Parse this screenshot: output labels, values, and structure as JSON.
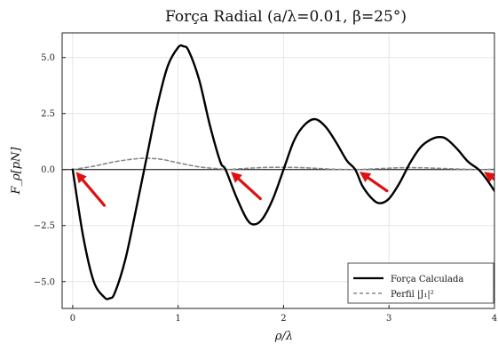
{
  "chart_data": {
    "type": "line",
    "title": "Força Radial (a/λ=0.01, β=25°)",
    "xlabel": "ρ/λ",
    "ylabel": "F_ρ[pN]",
    "xlim": [
      -0.1,
      4.0
    ],
    "ylim": [
      -6.2,
      6.1
    ],
    "x_ticks": [
      0,
      1,
      2,
      3,
      4
    ],
    "y_ticks": [
      -5.0,
      -2.5,
      0.0,
      2.5,
      5.0
    ],
    "x_tick_labels": [
      "0",
      "1",
      "2",
      "3",
      "4"
    ],
    "y_tick_labels": [
      "−5.0",
      "−2.5",
      "0.0",
      "2.5",
      "5.0"
    ],
    "grid": true,
    "legend_position": "bottom-right",
    "series": [
      {
        "name": "Força Calculada",
        "color": "#000000",
        "style": "solid",
        "points": [
          [
            0.0,
            0.0
          ],
          [
            0.1,
            -3.0
          ],
          [
            0.2,
            -5.0
          ],
          [
            0.3,
            -5.7
          ],
          [
            0.35,
            -5.75
          ],
          [
            0.4,
            -5.5
          ],
          [
            0.5,
            -4.0
          ],
          [
            0.6,
            -1.8
          ],
          [
            0.7,
            0.5
          ],
          [
            0.8,
            2.8
          ],
          [
            0.9,
            4.6
          ],
          [
            1.0,
            5.45
          ],
          [
            1.05,
            5.5
          ],
          [
            1.1,
            5.3
          ],
          [
            1.2,
            4.0
          ],
          [
            1.3,
            2.0
          ],
          [
            1.4,
            0.35
          ],
          [
            1.45,
            0.0
          ],
          [
            1.55,
            -1.2
          ],
          [
            1.65,
            -2.2
          ],
          [
            1.72,
            -2.45
          ],
          [
            1.8,
            -2.2
          ],
          [
            1.9,
            -1.3
          ],
          [
            2.0,
            0.0
          ],
          [
            2.1,
            1.3
          ],
          [
            2.2,
            2.0
          ],
          [
            2.3,
            2.25
          ],
          [
            2.4,
            1.9
          ],
          [
            2.5,
            1.2
          ],
          [
            2.6,
            0.4
          ],
          [
            2.68,
            0.0
          ],
          [
            2.75,
            -0.75
          ],
          [
            2.85,
            -1.35
          ],
          [
            2.92,
            -1.5
          ],
          [
            3.0,
            -1.3
          ],
          [
            3.1,
            -0.6
          ],
          [
            3.2,
            0.3
          ],
          [
            3.3,
            1.0
          ],
          [
            3.4,
            1.35
          ],
          [
            3.48,
            1.45
          ],
          [
            3.55,
            1.35
          ],
          [
            3.65,
            0.9
          ],
          [
            3.75,
            0.35
          ],
          [
            3.85,
            0.0
          ],
          [
            3.92,
            -0.4
          ],
          [
            4.0,
            -0.95
          ]
        ]
      },
      {
        "name": "Perfil |J₁|²",
        "color": "#888888",
        "style": "dashed",
        "points": [
          [
            0.0,
            0.0
          ],
          [
            0.2,
            0.15
          ],
          [
            0.4,
            0.35
          ],
          [
            0.6,
            0.48
          ],
          [
            0.72,
            0.5
          ],
          [
            0.85,
            0.45
          ],
          [
            1.0,
            0.3
          ],
          [
            1.2,
            0.12
          ],
          [
            1.4,
            0.03
          ],
          [
            1.45,
            0.0
          ],
          [
            1.6,
            0.04
          ],
          [
            1.8,
            0.09
          ],
          [
            2.0,
            0.1
          ],
          [
            2.2,
            0.08
          ],
          [
            2.45,
            0.02
          ],
          [
            2.68,
            0.0
          ],
          [
            2.9,
            0.04
          ],
          [
            3.1,
            0.08
          ],
          [
            3.3,
            0.08
          ],
          [
            3.55,
            0.04
          ],
          [
            3.85,
            0.0
          ],
          [
            4.0,
            0.02
          ]
        ]
      }
    ],
    "annotations": [
      {
        "type": "arrow",
        "color": "#e01010",
        "tip": [
          0.03,
          -0.1
        ],
        "tail": [
          0.3,
          -1.6
        ]
      },
      {
        "type": "arrow",
        "color": "#e01010",
        "tip": [
          1.5,
          -0.1
        ],
        "tail": [
          1.78,
          -1.3
        ]
      },
      {
        "type": "arrow",
        "color": "#e01010",
        "tip": [
          2.72,
          -0.1
        ],
        "tail": [
          2.98,
          -0.95
        ]
      },
      {
        "type": "arrow",
        "color": "#e01010",
        "tip": [
          3.9,
          -0.1
        ],
        "tail": [
          4.05,
          -0.6
        ]
      }
    ]
  }
}
